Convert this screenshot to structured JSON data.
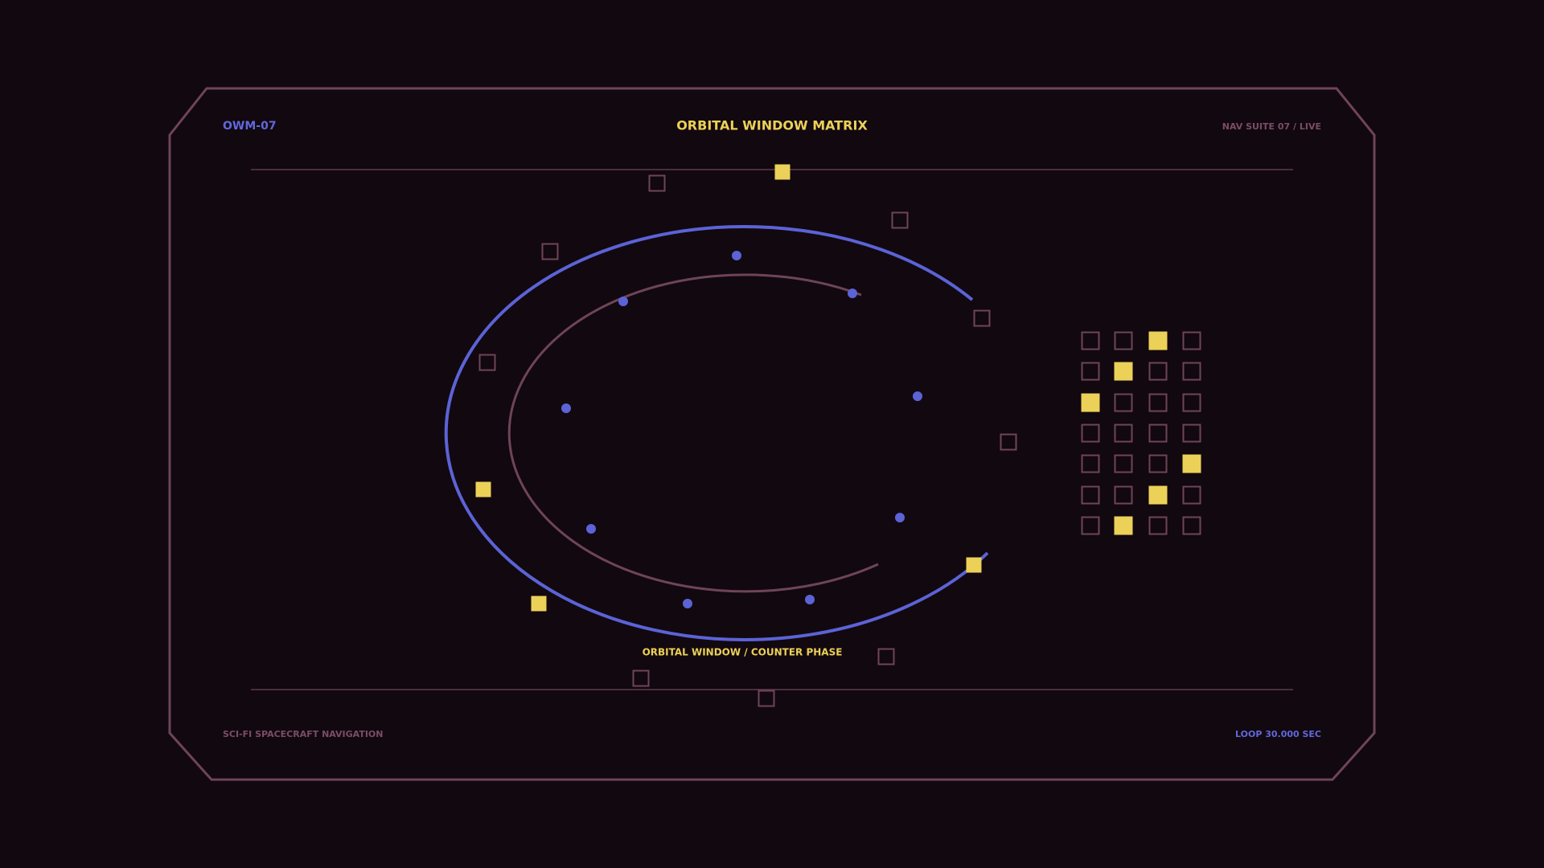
{
  "header": {
    "code": "OWM-07",
    "title": "ORBITAL WINDOW MATRIX",
    "status": "NAV SUITE 07 / LIVE"
  },
  "caption": "ORBITAL WINDOW / COUNTER PHASE",
  "footer": {
    "left": "SCI-FI SPACECRAFT NAVIGATION",
    "right": "LOOP 30.000 SEC"
  }
}
